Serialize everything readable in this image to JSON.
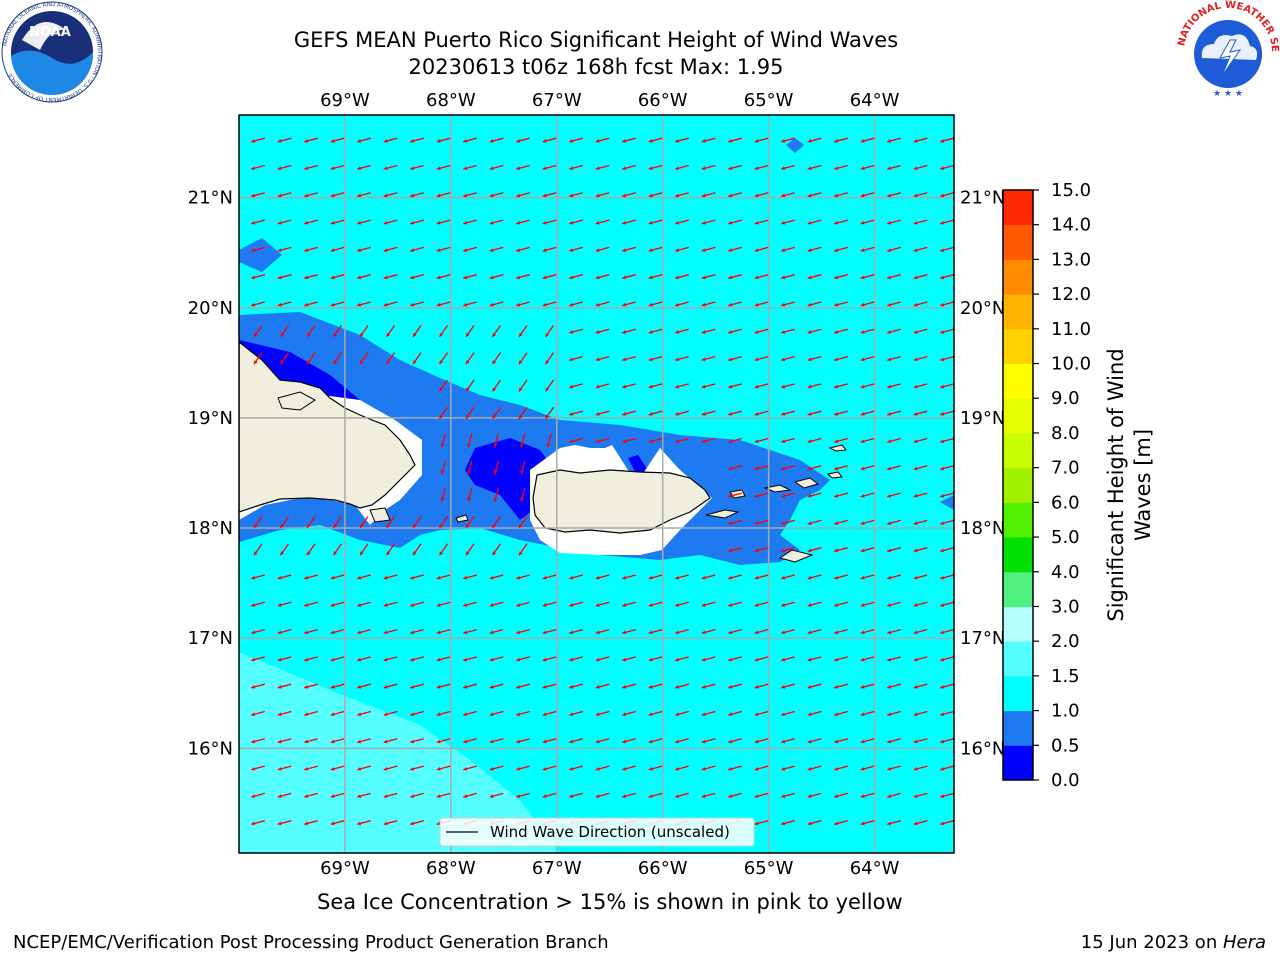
{
  "header": {
    "title_line1": "GEFS MEAN Puerto Rico Significant Height of Wind Waves",
    "title_line2": "20230613 t06z 168h fcst   Max: 1.95"
  },
  "map": {
    "lon_labels": [
      "69°W",
      "68°W",
      "67°W",
      "66°W",
      "65°W",
      "64°W"
    ],
    "lat_labels": [
      "21°N",
      "20°N",
      "19°N",
      "18°N",
      "17°N",
      "16°N"
    ],
    "lon_range": [
      -70,
      -63.25
    ],
    "lat_range": [
      15.05,
      21.75
    ],
    "land_color": "#f0eedc",
    "legend_label": "Wind Wave Direction (unscaled)",
    "arrow_color": "#ff0000"
  },
  "colorbar": {
    "label_line1": "Significant Height of Wind",
    "label_line2": "Waves [m]",
    "ticks": [
      "0.0",
      "0.5",
      "1.0",
      "1.5",
      "2.0",
      "3.0",
      "4.0",
      "5.0",
      "6.0",
      "7.0",
      "8.0",
      "9.0",
      "10.0",
      "11.0",
      "12.0",
      "13.0",
      "14.0",
      "15.0"
    ],
    "colors": [
      "#0000ff",
      "#1e7af0",
      "#00ffff",
      "#55ffff",
      "#b4ffff",
      "#50f080",
      "#00e000",
      "#50f000",
      "#a0f000",
      "#c8ff00",
      "#e6ff00",
      "#ffff00",
      "#ffd200",
      "#ffb400",
      "#ff8c00",
      "#ff5a00",
      "#ff2800",
      "#ff0000"
    ]
  },
  "caption": "Sea Ice Concentration > 15% is shown in pink to yellow",
  "footer": {
    "left": "NCEP/EMC/Verification Post Processing Product Generation Branch",
    "right_date": "15 Jun 2023 on ",
    "right_host": "Hera"
  },
  "logos": {
    "noaa_text": "NOAA",
    "noaa_ring": "NATIONAL OCEANIC AND ATMOSPHERIC ADMINISTRATION · U.S. DEPARTMENT OF COMMERCE",
    "nws_ring": "NATIONAL WEATHER SERVICE"
  }
}
